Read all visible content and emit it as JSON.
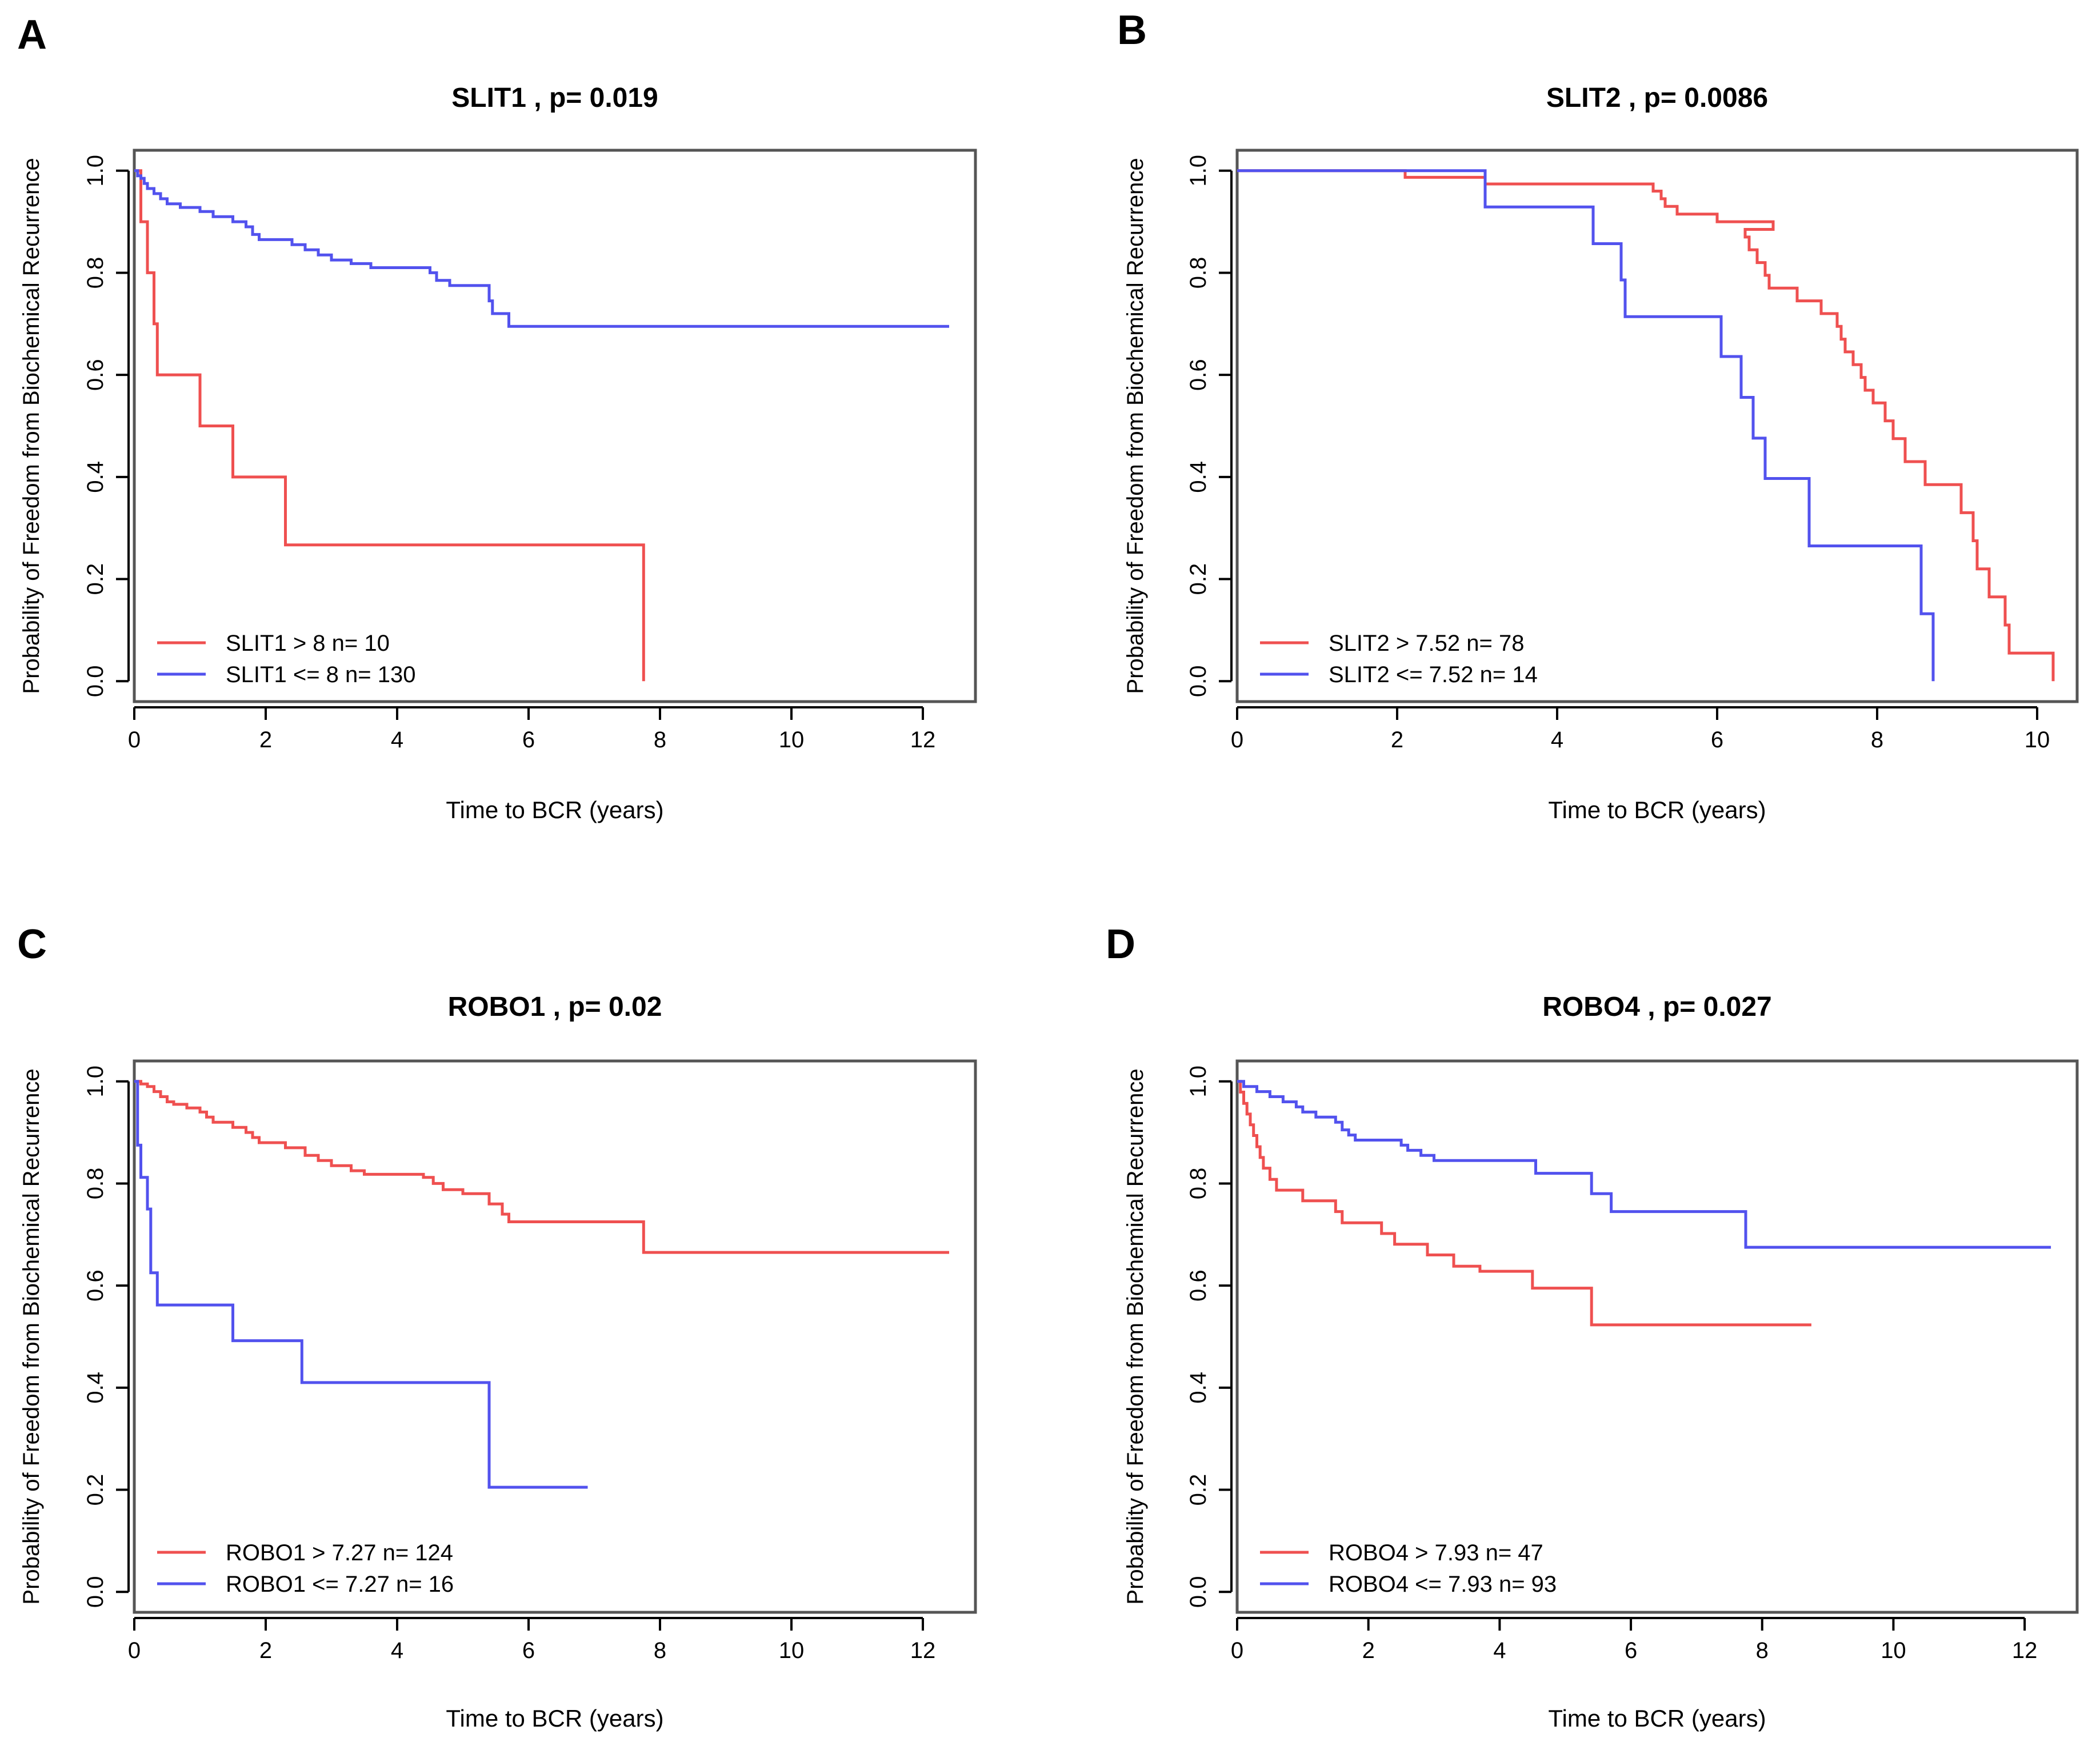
{
  "panels": [
    {
      "letter": "A"
    },
    {
      "letter": "B"
    },
    {
      "letter": "C"
    },
    {
      "letter": "D"
    }
  ],
  "colors": {
    "red": "#ef5050",
    "blue": "#5252ee",
    "axis": "#000000",
    "box": "#555555"
  },
  "chart_data": [
    {
      "type": "line",
      "title": "SLIT1 , p= 0.019",
      "xlabel": "Time to BCR (years)",
      "ylabel": "Probability of Freedom from Biochemical Recurrence",
      "xlim": [
        0,
        12.8
      ],
      "ylim": [
        -0.04,
        1.04
      ],
      "xticks": [
        "0",
        "2",
        "4",
        "6",
        "8",
        "10",
        "12"
      ],
      "yticks": [
        "0.0",
        "0.2",
        "0.4",
        "0.6",
        "0.8",
        "1.0"
      ],
      "legend_position": "bottom-left",
      "series": [
        {
          "name": "SLIT1 > 8 n= 10",
          "color": "red",
          "steps": [
            [
              0,
              1.0
            ],
            [
              0.1,
              0.9
            ],
            [
              0.2,
              0.8
            ],
            [
              0.3,
              0.7
            ],
            [
              0.35,
              0.6
            ],
            [
              1.0,
              0.5
            ],
            [
              1.5,
              0.4
            ],
            [
              2.3,
              0.267
            ],
            [
              7.75,
              0.0
            ]
          ],
          "end": 7.75
        },
        {
          "name": "SLIT1 <= 8 n= 130",
          "color": "blue",
          "steps": [
            [
              0,
              1.0
            ],
            [
              0.05,
              0.99
            ],
            [
              0.1,
              0.985
            ],
            [
              0.15,
              0.975
            ],
            [
              0.2,
              0.965
            ],
            [
              0.3,
              0.955
            ],
            [
              0.4,
              0.945
            ],
            [
              0.5,
              0.935
            ],
            [
              0.7,
              0.928
            ],
            [
              1.0,
              0.92
            ],
            [
              1.2,
              0.91
            ],
            [
              1.5,
              0.9
            ],
            [
              1.7,
              0.89
            ],
            [
              1.8,
              0.875
            ],
            [
              1.9,
              0.865
            ],
            [
              2.4,
              0.855
            ],
            [
              2.6,
              0.845
            ],
            [
              2.8,
              0.835
            ],
            [
              3.0,
              0.825
            ],
            [
              3.3,
              0.818
            ],
            [
              3.6,
              0.81
            ],
            [
              4.5,
              0.8
            ],
            [
              4.6,
              0.785
            ],
            [
              4.8,
              0.775
            ],
            [
              5.4,
              0.745
            ],
            [
              5.45,
              0.72
            ],
            [
              5.7,
              0.695
            ]
          ],
          "end": 12.4
        }
      ]
    },
    {
      "type": "line",
      "title": "SLIT2 , p= 0.0086",
      "xlabel": "Time to BCR (years)",
      "ylabel": "Probability of Freedom from Biochemical Recurrence",
      "xlim": [
        0,
        10.5
      ],
      "ylim": [
        -0.04,
        1.04
      ],
      "xticks": [
        "0",
        "2",
        "4",
        "6",
        "8",
        "10"
      ],
      "yticks": [
        "0.0",
        "0.2",
        "0.4",
        "0.6",
        "0.8",
        "1.0"
      ],
      "legend_position": "bottom-left",
      "series": [
        {
          "name": "SLIT2 > 7.52 n= 78",
          "color": "red",
          "steps": [
            [
              0,
              1.0
            ],
            [
              2.1,
              0.987
            ],
            [
              3.1,
              0.974
            ],
            [
              5.2,
              0.96
            ],
            [
              5.3,
              0.945
            ],
            [
              5.35,
              0.93
            ],
            [
              5.5,
              0.915
            ],
            [
              6.0,
              0.9
            ],
            [
              6.7,
              0.885
            ],
            [
              6.35,
              0.87
            ],
            [
              6.4,
              0.845
            ],
            [
              6.5,
              0.82
            ],
            [
              6.6,
              0.795
            ],
            [
              6.65,
              0.77
            ],
            [
              7.0,
              0.745
            ],
            [
              7.3,
              0.72
            ],
            [
              7.5,
              0.695
            ],
            [
              7.55,
              0.67
            ],
            [
              7.6,
              0.645
            ],
            [
              7.7,
              0.62
            ],
            [
              7.8,
              0.595
            ],
            [
              7.85,
              0.57
            ],
            [
              7.95,
              0.545
            ],
            [
              8.1,
              0.51
            ],
            [
              8.2,
              0.475
            ],
            [
              8.35,
              0.43
            ],
            [
              8.6,
              0.385
            ],
            [
              9.05,
              0.33
            ],
            [
              9.2,
              0.275
            ],
            [
              9.25,
              0.22
            ],
            [
              9.4,
              0.165
            ],
            [
              9.6,
              0.11
            ],
            [
              9.65,
              0.055
            ],
            [
              10.2,
              0.0
            ]
          ],
          "end": 10.2
        },
        {
          "name": "SLIT2 <= 7.52 n= 14",
          "color": "blue",
          "steps": [
            [
              0,
              1.0
            ],
            [
              3.1,
              0.929
            ],
            [
              4.45,
              0.857
            ],
            [
              4.8,
              0.786
            ],
            [
              4.85,
              0.714
            ],
            [
              6.05,
              0.636
            ],
            [
              6.3,
              0.556
            ],
            [
              6.45,
              0.476
            ],
            [
              6.6,
              0.397
            ],
            [
              7.15,
              0.265
            ],
            [
              8.55,
              0.132
            ],
            [
              8.7,
              0.0
            ]
          ],
          "end": 8.7
        }
      ]
    },
    {
      "type": "line",
      "title": "ROBO1 , p= 0.02",
      "xlabel": "Time to BCR (years)",
      "ylabel": "Probability of Freedom from Biochemical Recurrence",
      "xlim": [
        0,
        12.8
      ],
      "ylim": [
        -0.04,
        1.04
      ],
      "xticks": [
        "0",
        "2",
        "4",
        "6",
        "8",
        "10",
        "12"
      ],
      "yticks": [
        "0.0",
        "0.2",
        "0.4",
        "0.6",
        "0.8",
        "1.0"
      ],
      "legend_position": "bottom-left",
      "series": [
        {
          "name": "ROBO1 > 7.27 n= 124",
          "color": "red",
          "steps": [
            [
              0,
              1.0
            ],
            [
              0.1,
              0.995
            ],
            [
              0.2,
              0.99
            ],
            [
              0.3,
              0.98
            ],
            [
              0.4,
              0.97
            ],
            [
              0.5,
              0.96
            ],
            [
              0.6,
              0.955
            ],
            [
              0.8,
              0.948
            ],
            [
              1.0,
              0.94
            ],
            [
              1.1,
              0.93
            ],
            [
              1.2,
              0.92
            ],
            [
              1.5,
              0.91
            ],
            [
              1.7,
              0.9
            ],
            [
              1.8,
              0.89
            ],
            [
              1.9,
              0.88
            ],
            [
              2.3,
              0.87
            ],
            [
              2.6,
              0.855
            ],
            [
              2.8,
              0.845
            ],
            [
              3.0,
              0.835
            ],
            [
              3.3,
              0.825
            ],
            [
              3.5,
              0.818
            ],
            [
              4.4,
              0.812
            ],
            [
              4.55,
              0.8
            ],
            [
              4.7,
              0.788
            ],
            [
              5.0,
              0.78
            ],
            [
              5.4,
              0.76
            ],
            [
              5.6,
              0.74
            ],
            [
              5.7,
              0.725
            ],
            [
              7.75,
              0.665
            ]
          ],
          "end": 12.4
        },
        {
          "name": "ROBO1 <= 7.27 n= 16",
          "color": "blue",
          "steps": [
            [
              0,
              1.0
            ],
            [
              0.05,
              0.875
            ],
            [
              0.1,
              0.812
            ],
            [
              0.2,
              0.75
            ],
            [
              0.25,
              0.625
            ],
            [
              0.35,
              0.562
            ],
            [
              1.5,
              0.492
            ],
            [
              2.55,
              0.41
            ],
            [
              5.4,
              0.205
            ]
          ],
          "end": 6.9
        }
      ]
    },
    {
      "type": "line",
      "title": "ROBO4 , p= 0.027",
      "xlabel": "Time to BCR (years)",
      "ylabel": "Probability of Freedom from Biochemical Recurrence",
      "xlim": [
        0,
        12.8
      ],
      "ylim": [
        -0.04,
        1.04
      ],
      "xticks": [
        "0",
        "2",
        "4",
        "6",
        "8",
        "10",
        "12"
      ],
      "yticks": [
        "0.0",
        "0.2",
        "0.4",
        "0.6",
        "0.8",
        "1.0"
      ],
      "legend_position": "bottom-left",
      "series": [
        {
          "name": "ROBO4 > 7.93 n= 47",
          "color": "red",
          "steps": [
            [
              0,
              1.0
            ],
            [
              0.05,
              0.979
            ],
            [
              0.1,
              0.957
            ],
            [
              0.15,
              0.936
            ],
            [
              0.2,
              0.915
            ],
            [
              0.25,
              0.894
            ],
            [
              0.3,
              0.872
            ],
            [
              0.35,
              0.851
            ],
            [
              0.4,
              0.83
            ],
            [
              0.5,
              0.808
            ],
            [
              0.6,
              0.787
            ],
            [
              1.0,
              0.766
            ],
            [
              1.5,
              0.745
            ],
            [
              1.6,
              0.723
            ],
            [
              2.2,
              0.702
            ],
            [
              2.4,
              0.681
            ],
            [
              2.9,
              0.66
            ],
            [
              3.3,
              0.638
            ],
            [
              3.7,
              0.628
            ],
            [
              4.5,
              0.595
            ],
            [
              5.4,
              0.523
            ]
          ],
          "end": 8.75
        },
        {
          "name": "ROBO4 <= 7.93 n= 93",
          "color": "blue",
          "steps": [
            [
              0,
              1.0
            ],
            [
              0.1,
              0.99
            ],
            [
              0.3,
              0.98
            ],
            [
              0.5,
              0.97
            ],
            [
              0.7,
              0.96
            ],
            [
              0.9,
              0.95
            ],
            [
              1.0,
              0.94
            ],
            [
              1.2,
              0.93
            ],
            [
              1.5,
              0.92
            ],
            [
              1.6,
              0.905
            ],
            [
              1.7,
              0.895
            ],
            [
              1.8,
              0.885
            ],
            [
              2.5,
              0.875
            ],
            [
              2.6,
              0.865
            ],
            [
              2.8,
              0.855
            ],
            [
              3.0,
              0.845
            ],
            [
              4.55,
              0.82
            ],
            [
              5.4,
              0.78
            ],
            [
              5.7,
              0.745
            ],
            [
              7.75,
              0.675
            ]
          ],
          "end": 12.4
        }
      ]
    }
  ]
}
